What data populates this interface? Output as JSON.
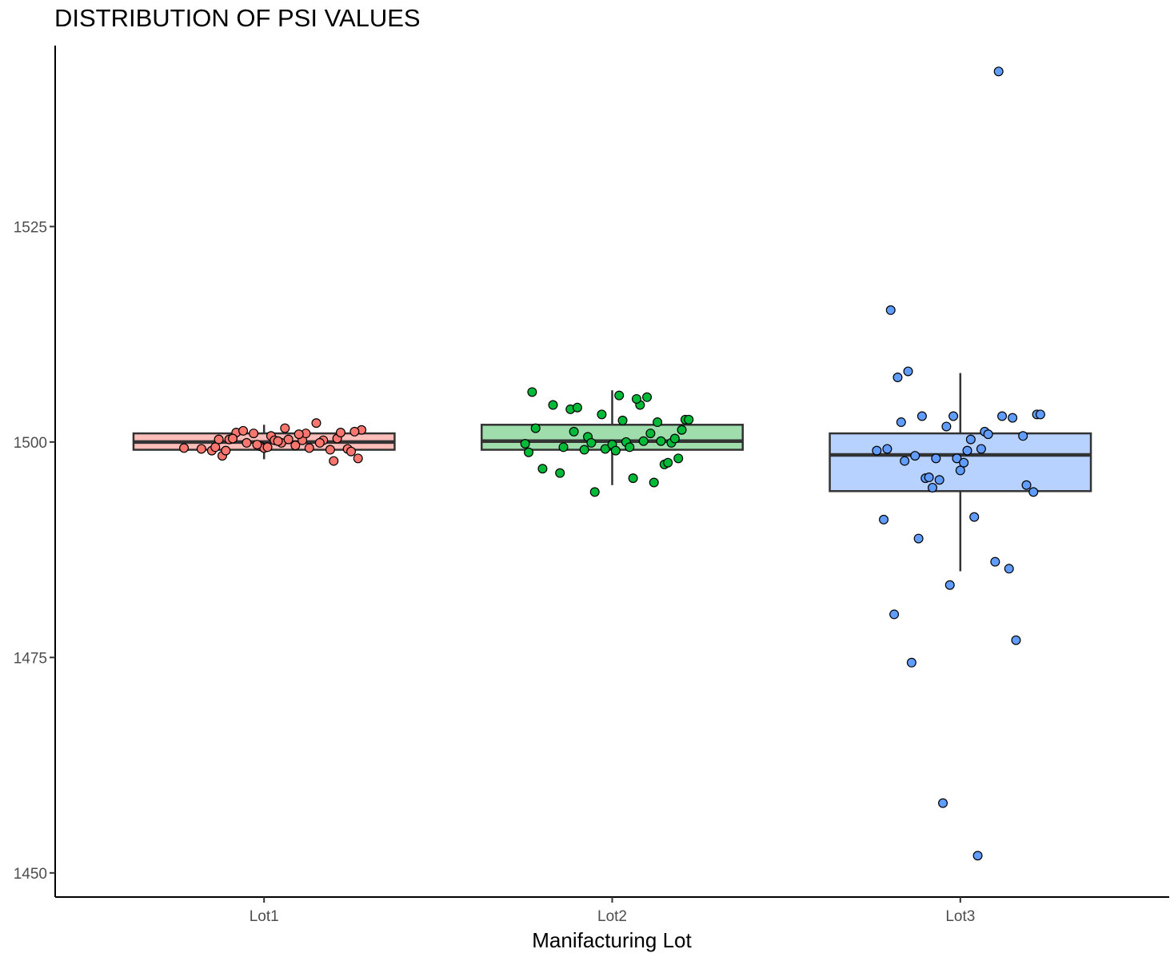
{
  "chart_data": {
    "type": "boxplot",
    "title": "DISTRIBUTION OF PSI VALUES",
    "xlabel": "Manifacturing Lot",
    "ylabel": "",
    "ylim": [
      1447.2,
      1546.0
    ],
    "yticks": [
      "1450",
      "1475",
      "1500",
      "1525"
    ],
    "ytick_values": [
      1450,
      1475,
      1500,
      1525
    ],
    "categories": [
      "Lot1",
      "Lot2",
      "Lot3"
    ],
    "grid": false,
    "legend": "none",
    "colors": {
      "Lot1": "#F8766D",
      "Lot2": "#00BA38",
      "Lot3": "#619CFF",
      "box_fill_Lot1": "#FDBDB8",
      "box_fill_Lot2": "#9FDDAD",
      "box_fill_Lot3": "#B7D2FF",
      "box_line": "#333333"
    },
    "boxes": [
      {
        "category": "Lot1",
        "lower_whisker": 1498.0,
        "q1": 1499.1,
        "median": 1500.0,
        "q3": 1501.0,
        "upper_whisker": 1502.0
      },
      {
        "category": "Lot2",
        "lower_whisker": 1495.0,
        "q1": 1499.1,
        "median": 1500.1,
        "q3": 1502.0,
        "upper_whisker": 1506.0
      },
      {
        "category": "Lot3",
        "lower_whisker": 1485.0,
        "q1": 1494.3,
        "median": 1498.5,
        "q3": 1501.0,
        "upper_whisker": 1508.0
      }
    ],
    "points": [
      {
        "category": "Lot1",
        "x_jitter": [
          -0.23,
          -0.18,
          -0.15,
          -0.13,
          -0.12,
          -0.1,
          -0.08,
          -0.06,
          -0.05,
          -0.03,
          -0.01,
          0.0,
          0.02,
          0.03,
          0.05,
          0.06,
          0.07,
          0.09,
          0.11,
          0.12,
          0.13,
          0.15,
          0.17,
          0.19,
          0.21,
          0.22,
          0.24,
          0.25,
          0.27,
          0.28,
          -0.14,
          -0.09,
          -0.02,
          0.04,
          0.1,
          0.16,
          0.2,
          0.26,
          -0.11,
          0.01
        ],
        "y": [
          1499.3,
          1499.2,
          1499.0,
          1500.3,
          1498.4,
          1500.3,
          1501.1,
          1501.3,
          1499.9,
          1501.0,
          1499.5,
          1499.3,
          1500.7,
          1500.2,
          1499.9,
          1501.6,
          1500.3,
          1499.6,
          1500.2,
          1501.0,
          1499.3,
          1502.2,
          1500.2,
          1499.1,
          1500.4,
          1501.1,
          1499.2,
          1498.9,
          1498.1,
          1501.4,
          1499.4,
          1500.4,
          1499.7,
          1500.1,
          1500.9,
          1499.9,
          1497.8,
          1501.2,
          1499.0,
          1499.4
        ]
      },
      {
        "category": "Lot2",
        "x_jitter": [
          -0.25,
          -0.23,
          -0.22,
          -0.2,
          -0.17,
          -0.15,
          -0.12,
          -0.1,
          -0.08,
          -0.07,
          -0.05,
          -0.03,
          -0.02,
          0.0,
          0.02,
          0.04,
          0.05,
          0.06,
          0.08,
          0.09,
          0.1,
          0.12,
          0.13,
          0.14,
          0.15,
          0.17,
          0.18,
          0.2,
          0.21,
          0.22,
          -0.24,
          -0.14,
          -0.06,
          0.03,
          0.11,
          0.16,
          0.19,
          0.07,
          -0.11,
          0.01
        ],
        "y": [
          1499.8,
          1505.8,
          1501.6,
          1496.9,
          1504.3,
          1496.4,
          1503.8,
          1504.0,
          1499.1,
          1500.6,
          1494.2,
          1503.2,
          1499.2,
          1499.7,
          1505.4,
          1500.0,
          1499.4,
          1495.8,
          1504.3,
          1500.1,
          1505.2,
          1495.3,
          1502.3,
          1500.1,
          1497.4,
          1499.9,
          1500.4,
          1501.4,
          1502.6,
          1502.6,
          1498.8,
          1499.4,
          1499.9,
          1502.5,
          1501.0,
          1497.6,
          1498.1,
          1505.0,
          1501.2,
          1499.0
        ]
      },
      {
        "category": "Lot3",
        "x_jitter": [
          -0.24,
          -0.22,
          -0.2,
          -0.19,
          -0.17,
          -0.16,
          -0.14,
          -0.12,
          -0.11,
          -0.1,
          -0.09,
          -0.08,
          -0.07,
          -0.06,
          -0.05,
          -0.04,
          -0.03,
          -0.02,
          -0.01,
          0.0,
          0.01,
          0.02,
          0.03,
          0.04,
          0.05,
          0.06,
          0.07,
          0.08,
          0.1,
          0.11,
          0.12,
          0.14,
          0.15,
          0.16,
          0.18,
          0.19,
          0.21,
          0.22,
          0.23,
          -0.13,
          -0.15,
          -0.18,
          -0.21
        ],
        "y": [
          1499.0,
          1491.0,
          1515.3,
          1480.0,
          1502.3,
          1497.8,
          1474.4,
          1488.8,
          1503.0,
          1495.8,
          1495.9,
          1494.7,
          1498.1,
          1495.6,
          1458.1,
          1501.8,
          1483.4,
          1503.0,
          1498.1,
          1496.7,
          1497.6,
          1499.0,
          1500.3,
          1491.3,
          1452.0,
          1499.2,
          1501.2,
          1500.9,
          1486.1,
          1543.0,
          1503.0,
          1485.3,
          1502.8,
          1477.0,
          1500.7,
          1495.0,
          1494.2,
          1503.2,
          1503.2,
          1498.4,
          1508.2,
          1507.5,
          1499.2
        ]
      }
    ]
  }
}
